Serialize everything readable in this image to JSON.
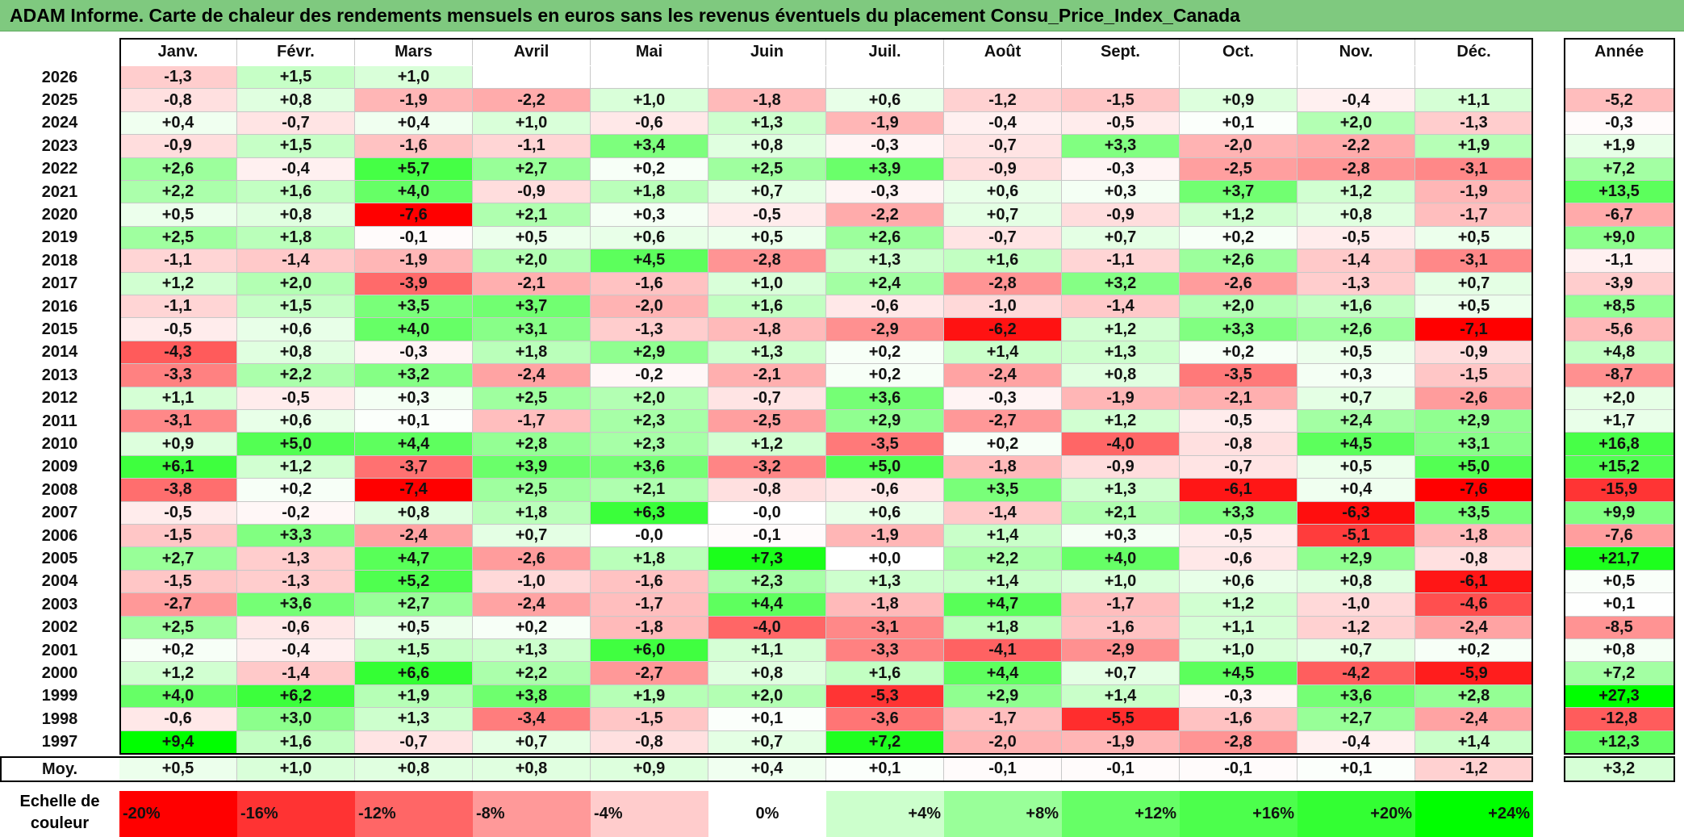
{
  "title": "ADAM Informe. Carte de chaleur des rendements mensuels en euros sans les revenus éventuels du placement Consu_Price_Index_Canada",
  "chart_data": {
    "type": "heatmap",
    "columns": [
      "Janv.",
      "Févr.",
      "Mars",
      "Avril",
      "Mai",
      "Juin",
      "Juil.",
      "Août",
      "Sept.",
      "Oct.",
      "Nov.",
      "Déc."
    ],
    "annual_header": "Année",
    "rows": [
      {
        "year": "2026",
        "values": [
          "-1,3",
          "+1,5",
          "+1,0",
          "",
          "",
          "",
          "",
          "",
          "",
          "",
          "",
          ""
        ],
        "annual": ""
      },
      {
        "year": "2025",
        "values": [
          "-0,8",
          "+0,8",
          "-1,9",
          "-2,2",
          "+1,0",
          "-1,8",
          "+0,6",
          "-1,2",
          "-1,5",
          "+0,9",
          "-0,4",
          "+1,1"
        ],
        "annual": "-5,2"
      },
      {
        "year": "2024",
        "values": [
          "+0,4",
          "-0,7",
          "+0,4",
          "+1,0",
          "-0,6",
          "+1,3",
          "-1,9",
          "-0,4",
          "-0,5",
          "+0,1",
          "+2,0",
          "-1,3"
        ],
        "annual": "-0,3"
      },
      {
        "year": "2023",
        "values": [
          "-0,9",
          "+1,5",
          "-1,6",
          "-1,1",
          "+3,4",
          "+0,8",
          "-0,3",
          "-0,7",
          "+3,3",
          "-2,0",
          "-2,2",
          "+1,9"
        ],
        "annual": "+1,9"
      },
      {
        "year": "2022",
        "values": [
          "+2,6",
          "-0,4",
          "+5,7",
          "+2,7",
          "+0,2",
          "+2,5",
          "+3,9",
          "-0,9",
          "-0,3",
          "-2,5",
          "-2,8",
          "-3,1"
        ],
        "annual": "+7,2"
      },
      {
        "year": "2021",
        "values": [
          "+2,2",
          "+1,6",
          "+4,0",
          "-0,9",
          "+1,8",
          "+0,7",
          "-0,3",
          "+0,6",
          "+0,3",
          "+3,7",
          "+1,2",
          "-1,9"
        ],
        "annual": "+13,5"
      },
      {
        "year": "2020",
        "values": [
          "+0,5",
          "+0,8",
          "-7,6",
          "+2,1",
          "+0,3",
          "-0,5",
          "-2,2",
          "+0,7",
          "-0,9",
          "+1,2",
          "+0,8",
          "-1,7"
        ],
        "annual": "-6,7"
      },
      {
        "year": "2019",
        "values": [
          "+2,5",
          "+1,8",
          "-0,1",
          "+0,5",
          "+0,6",
          "+0,5",
          "+2,6",
          "-0,7",
          "+0,7",
          "+0,2",
          "-0,5",
          "+0,5"
        ],
        "annual": "+9,0"
      },
      {
        "year": "2018",
        "values": [
          "-1,1",
          "-1,4",
          "-1,9",
          "+2,0",
          "+4,5",
          "-2,8",
          "+1,3",
          "+1,6",
          "-1,1",
          "+2,6",
          "-1,4",
          "-3,1"
        ],
        "annual": "-1,1"
      },
      {
        "year": "2017",
        "values": [
          "+1,2",
          "+2,0",
          "-3,9",
          "-2,1",
          "-1,6",
          "+1,0",
          "+2,4",
          "-2,8",
          "+3,2",
          "-2,6",
          "-1,3",
          "+0,7"
        ],
        "annual": "-3,9"
      },
      {
        "year": "2016",
        "values": [
          "-1,1",
          "+1,5",
          "+3,5",
          "+3,7",
          "-2,0",
          "+1,6",
          "-0,6",
          "-1,0",
          "-1,4",
          "+2,0",
          "+1,6",
          "+0,5"
        ],
        "annual": "+8,5"
      },
      {
        "year": "2015",
        "values": [
          "-0,5",
          "+0,6",
          "+4,0",
          "+3,1",
          "-1,3",
          "-1,8",
          "-2,9",
          "-6,2",
          "+1,2",
          "+3,3",
          "+2,6",
          "-7,1"
        ],
        "annual": "-5,6"
      },
      {
        "year": "2014",
        "values": [
          "-4,3",
          "+0,8",
          "-0,3",
          "+1,8",
          "+2,9",
          "+1,3",
          "+0,2",
          "+1,4",
          "+1,3",
          "+0,2",
          "+0,5",
          "-0,9"
        ],
        "annual": "+4,8"
      },
      {
        "year": "2013",
        "values": [
          "-3,3",
          "+2,2",
          "+3,2",
          "-2,4",
          "-0,2",
          "-2,1",
          "+0,2",
          "-2,4",
          "+0,8",
          "-3,5",
          "+0,3",
          "-1,5"
        ],
        "annual": "-8,7"
      },
      {
        "year": "2012",
        "values": [
          "+1,1",
          "-0,5",
          "+0,3",
          "+2,5",
          "+2,0",
          "-0,7",
          "+3,6",
          "-0,3",
          "-1,9",
          "-2,1",
          "+0,7",
          "-2,6"
        ],
        "annual": "+2,0"
      },
      {
        "year": "2011",
        "values": [
          "-3,1",
          "+0,6",
          "+0,1",
          "-1,7",
          "+2,3",
          "-2,5",
          "+2,9",
          "-2,7",
          "+1,2",
          "-0,5",
          "+2,4",
          "+2,9"
        ],
        "annual": "+1,7"
      },
      {
        "year": "2010",
        "values": [
          "+0,9",
          "+5,0",
          "+4,4",
          "+2,8",
          "+2,3",
          "+1,2",
          "-3,5",
          "+0,2",
          "-4,0",
          "-0,8",
          "+4,5",
          "+3,1"
        ],
        "annual": "+16,8"
      },
      {
        "year": "2009",
        "values": [
          "+6,1",
          "+1,2",
          "-3,7",
          "+3,9",
          "+3,6",
          "-3,2",
          "+5,0",
          "-1,8",
          "-0,9",
          "-0,7",
          "+0,5",
          "+5,0"
        ],
        "annual": "+15,2"
      },
      {
        "year": "2008",
        "values": [
          "-3,8",
          "+0,2",
          "-7,4",
          "+2,5",
          "+2,1",
          "-0,8",
          "-0,6",
          "+3,5",
          "+1,3",
          "-6,1",
          "+0,4",
          "-7,6"
        ],
        "annual": "-15,9"
      },
      {
        "year": "2007",
        "values": [
          "-0,5",
          "-0,2",
          "+0,8",
          "+1,8",
          "+6,3",
          "-0,0",
          "+0,6",
          "-1,4",
          "+2,1",
          "+3,3",
          "-6,3",
          "+3,5"
        ],
        "annual": "+9,9"
      },
      {
        "year": "2006",
        "values": [
          "-1,5",
          "+3,3",
          "-2,4",
          "+0,7",
          "-0,0",
          "-0,1",
          "-1,9",
          "+1,4",
          "+0,3",
          "-0,5",
          "-5,1",
          "-1,8"
        ],
        "annual": "-7,6"
      },
      {
        "year": "2005",
        "values": [
          "+2,7",
          "-1,3",
          "+4,7",
          "-2,6",
          "+1,8",
          "+7,3",
          "+0,0",
          "+2,2",
          "+4,0",
          "-0,6",
          "+2,9",
          "-0,8"
        ],
        "annual": "+21,7"
      },
      {
        "year": "2004",
        "values": [
          "-1,5",
          "-1,3",
          "+5,2",
          "-1,0",
          "-1,6",
          "+2,3",
          "+1,3",
          "+1,4",
          "+1,0",
          "+0,6",
          "+0,8",
          "-6,1"
        ],
        "annual": "+0,5"
      },
      {
        "year": "2003",
        "values": [
          "-2,7",
          "+3,6",
          "+2,7",
          "-2,4",
          "-1,7",
          "+4,4",
          "-1,8",
          "+4,7",
          "-1,7",
          "+1,2",
          "-1,0",
          "-4,6"
        ],
        "annual": "+0,1"
      },
      {
        "year": "2002",
        "values": [
          "+2,5",
          "-0,6",
          "+0,5",
          "+0,2",
          "-1,8",
          "-4,0",
          "-3,1",
          "+1,8",
          "-1,6",
          "+1,1",
          "-1,2",
          "-2,4"
        ],
        "annual": "-8,5"
      },
      {
        "year": "2001",
        "values": [
          "+0,2",
          "-0,4",
          "+1,5",
          "+1,3",
          "+6,0",
          "+1,1",
          "-3,3",
          "-4,1",
          "-2,9",
          "+1,0",
          "+0,7",
          "+0,2"
        ],
        "annual": "+0,8"
      },
      {
        "year": "2000",
        "values": [
          "+1,2",
          "-1,4",
          "+6,6",
          "+2,2",
          "-2,7",
          "+0,8",
          "+1,6",
          "+4,4",
          "+0,7",
          "+4,5",
          "-4,2",
          "-5,9"
        ],
        "annual": "+7,2"
      },
      {
        "year": "1999",
        "values": [
          "+4,0",
          "+6,2",
          "+1,9",
          "+3,8",
          "+1,9",
          "+2,0",
          "-5,3",
          "+2,9",
          "+1,4",
          "-0,3",
          "+3,6",
          "+2,8"
        ],
        "annual": "+27,3"
      },
      {
        "year": "1998",
        "values": [
          "-0,6",
          "+3,0",
          "+1,3",
          "-3,4",
          "-1,5",
          "+0,1",
          "-3,6",
          "-1,7",
          "-5,5",
          "-1,6",
          "+2,7",
          "-2,4"
        ],
        "annual": "-12,8"
      },
      {
        "year": "1997",
        "values": [
          "+9,4",
          "+1,6",
          "-0,7",
          "+0,7",
          "-0,8",
          "+0,7",
          "+7,2",
          "-2,0",
          "-1,9",
          "-2,8",
          "-0,4",
          "+1,4"
        ],
        "annual": "+12,3"
      }
    ],
    "average": {
      "label": "Moy.",
      "values": [
        "+0,5",
        "+1,0",
        "+0,8",
        "+0,8",
        "+0,9",
        "+0,4",
        "+0,1",
        "-0,1",
        "-0,1",
        "-0,1",
        "+0,1",
        "-1,2"
      ],
      "annual": "+3,2"
    },
    "legend": {
      "label_line1": "Echelle de",
      "label_line2": "couleur",
      "stops": [
        {
          "label": "-20%",
          "value": -20,
          "color": "#ff0000"
        },
        {
          "label": "-16%",
          "value": -16,
          "color": "#ff3333"
        },
        {
          "label": "-12%",
          "value": -12,
          "color": "#ff6666"
        },
        {
          "label": "-8%",
          "value": -8,
          "color": "#ff9999"
        },
        {
          "label": "-4%",
          "value": -4,
          "color": "#ffcccc"
        },
        {
          "label": "0%",
          "value": 0,
          "color": "#ffffff"
        },
        {
          "label": "+4%",
          "value": 4,
          "color": "#ccffcc"
        },
        {
          "label": "+8%",
          "value": 8,
          "color": "#99ff99"
        },
        {
          "label": "+12%",
          "value": 12,
          "color": "#66ff66"
        },
        {
          "label": "+16%",
          "value": 16,
          "color": "#4cff4c"
        },
        {
          "label": "+20%",
          "value": 20,
          "color": "#33ff33"
        },
        {
          "label": "+24%",
          "value": 24,
          "color": "#00ff00"
        }
      ]
    }
  }
}
